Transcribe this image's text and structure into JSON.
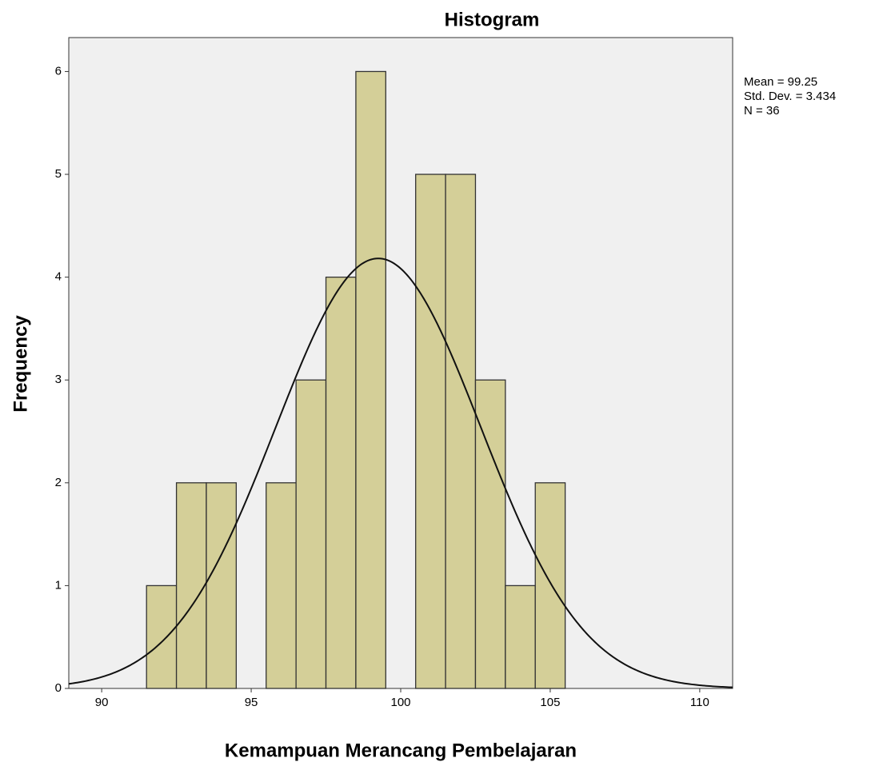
{
  "chart_data": {
    "type": "histogram",
    "title": "Histogram",
    "x_label": "Kemampuan Merancang Pembelajaran",
    "y_label": "Frequency",
    "bins": [
      91.5,
      92.5,
      93.5,
      94.5,
      95.5,
      96.5,
      97.5,
      98.5,
      99.5,
      100.5,
      101.5,
      102.5,
      103.5,
      104.5,
      105.5
    ],
    "counts": [
      1,
      2,
      2,
      0,
      2,
      3,
      4,
      6,
      0,
      5,
      5,
      3,
      1,
      2
    ],
    "color": "#d4cf98",
    "xlim": [
      88.9,
      111.1
    ],
    "xticks": [
      90,
      95,
      100,
      105,
      110
    ],
    "ylim": [
      0,
      6.33
    ],
    "yticks": [
      0,
      1,
      2,
      3,
      4,
      5,
      6
    ],
    "normal_curve": {
      "mean": {
        "value": 99.25,
        "label": "Mean = 99.25"
      },
      "std": {
        "value": 3.434,
        "label": "Std. Dev. = 3.434"
      },
      "n": {
        "value": 36,
        "label": "N = 36"
      }
    }
  }
}
